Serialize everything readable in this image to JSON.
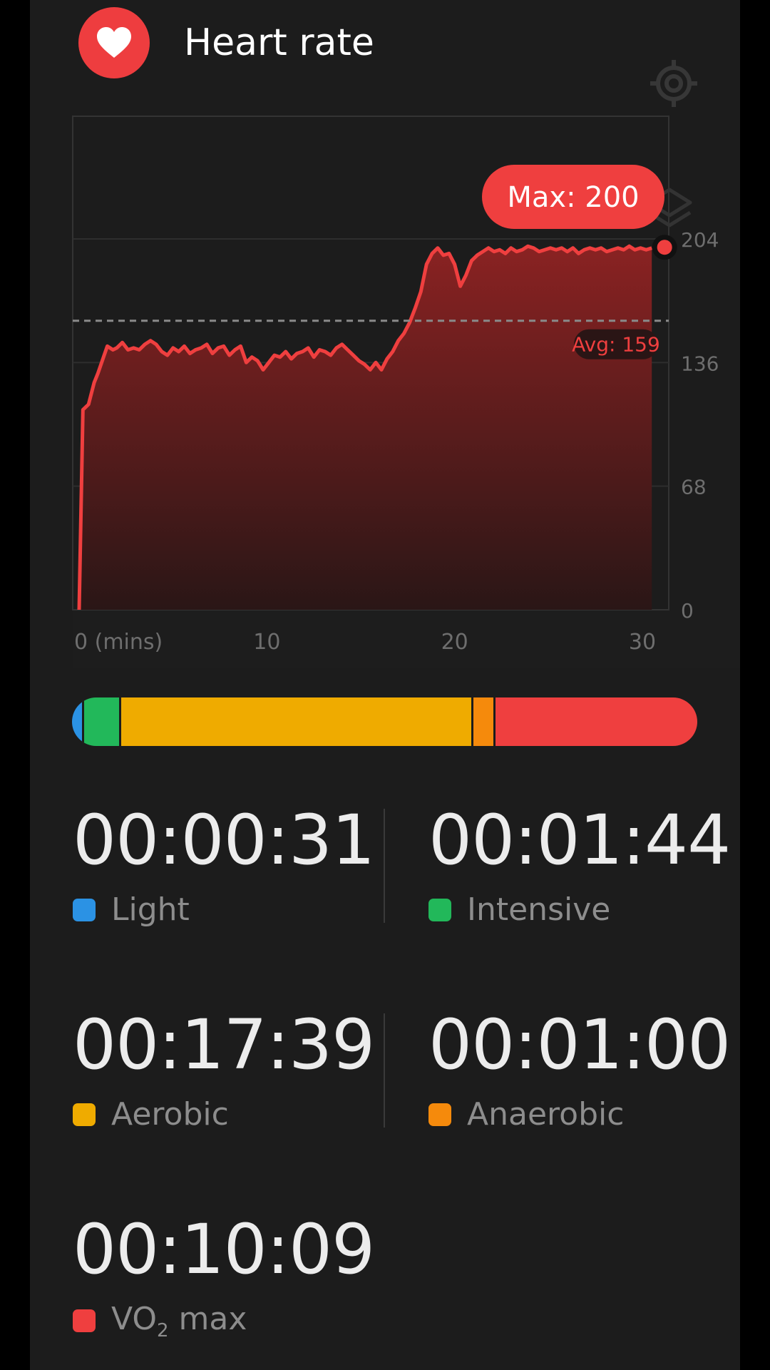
{
  "header": {
    "title": "Heart rate"
  },
  "icons": {
    "heart": "heart-icon",
    "settings": "target-settings-icon",
    "layers": "layers-icon"
  },
  "colors": {
    "accent": "#ef3f3f",
    "background": "#1c1c1c",
    "zone_light": "#2b92e4",
    "zone_intensive": "#22b85a",
    "zone_aerobic": "#efab00",
    "zone_anaerobic": "#f58a0c",
    "zone_vo2max": "#ef3f3f"
  },
  "chart_data": {
    "type": "area",
    "title": "",
    "xlabel": "(mins)",
    "ylabel": "",
    "x_tick_labels": [
      "0 (mins)",
      "10",
      "20",
      "30"
    ],
    "x_ticks": [
      0,
      10,
      20,
      30
    ],
    "y_ticks": [
      0,
      68,
      136,
      204
    ],
    "xlim": [
      0,
      31.5
    ],
    "ylim": [
      0,
      204
    ],
    "grid": true,
    "max_label": "Max: 200",
    "avg_label": "Avg: 159",
    "avg_value": 159,
    "max_value": 200,
    "series": [
      {
        "x": [
          0,
          0.2,
          0.5,
          0.8,
          1.0,
          1.3,
          1.5,
          1.8,
          2.0,
          2.3,
          2.6,
          2.9,
          3.2,
          3.5,
          3.8,
          4.1,
          4.4,
          4.7,
          5.0,
          5.3,
          5.6,
          5.9,
          6.2,
          6.5,
          6.8,
          7.1,
          7.4,
          7.7,
          8.0,
          8.3,
          8.6,
          8.9,
          9.2,
          9.5,
          9.8,
          10.1,
          10.4,
          10.7,
          11.0,
          11.3,
          11.6,
          11.9,
          12.2,
          12.5,
          12.8,
          13.1,
          13.4,
          13.7,
          14.0,
          14.3,
          14.6,
          14.9,
          15.2,
          15.5,
          15.8,
          16.1,
          16.4,
          16.7,
          17.0,
          17.3,
          17.6,
          17.9,
          18.2,
          18.5,
          18.8,
          19.1,
          19.4,
          19.7,
          20.0,
          20.3,
          20.6,
          20.9,
          21.2,
          21.5,
          21.8,
          22.1,
          22.4,
          22.7,
          23.0,
          23.3,
          23.6,
          23.9,
          24.2,
          24.5,
          24.8,
          25.1,
          25.4,
          25.7,
          26.0,
          26.3,
          26.6,
          26.9,
          27.2,
          27.5,
          27.8,
          28.1,
          28.4,
          28.7,
          29.0,
          29.3,
          29.6,
          29.9,
          30.2,
          30.5
        ],
        "values": [
          0,
          110,
          113,
          125,
          130,
          139,
          145,
          143,
          144,
          147,
          143,
          144,
          143,
          146,
          148,
          146,
          142,
          140,
          144,
          142,
          145,
          141,
          143,
          144,
          146,
          141,
          144,
          145,
          140,
          143,
          145,
          136,
          139,
          137,
          132,
          136,
          140,
          139,
          142,
          138,
          141,
          142,
          144,
          139,
          143,
          142,
          140,
          144,
          146,
          143,
          140,
          137,
          135,
          132,
          136,
          132,
          138,
          142,
          148,
          152,
          158,
          166,
          175,
          190,
          196,
          199,
          195,
          196,
          190,
          178,
          184,
          192,
          195,
          197,
          199,
          197,
          198,
          196,
          199,
          197,
          198,
          200,
          199,
          197,
          198,
          199,
          198,
          199,
          197,
          199,
          196,
          198,
          199,
          198,
          199,
          197,
          198,
          199,
          198,
          200,
          198,
          199,
          198,
          199
        ]
      }
    ]
  },
  "zones": [
    {
      "name": "Light",
      "time": "00:00:31",
      "fraction": 0.0171
    },
    {
      "name": "Intensive",
      "time": "00:01:44",
      "fraction": 0.0574
    },
    {
      "name": "Aerobic",
      "time": "00:17:39",
      "fraction": 0.5844
    },
    {
      "name": "Anaerobic",
      "time": "00:01:00",
      "fraction": 0.0331
    },
    {
      "name": "VO",
      "name_sub": "2",
      "name_rest": " max",
      "time": "00:10:09",
      "fraction": 0.336
    }
  ]
}
